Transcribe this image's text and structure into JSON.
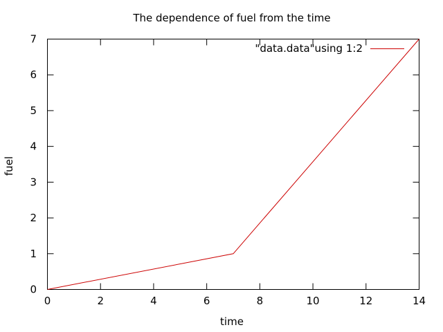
{
  "chart_data": {
    "type": "line",
    "title": "The dependence of fuel from the time",
    "xlabel": "time",
    "ylabel": "fuel",
    "xlim": [
      0,
      14
    ],
    "ylim": [
      0,
      7
    ],
    "xticks": [
      0,
      2,
      4,
      6,
      8,
      10,
      12,
      14
    ],
    "yticks": [
      0,
      1,
      2,
      3,
      4,
      5,
      6,
      7
    ],
    "grid": false,
    "legend_position": "top-right",
    "series": [
      {
        "name": "\"data.data\"using 1:2",
        "color": "#cc0000",
        "x": [
          0,
          7,
          14
        ],
        "y": [
          0,
          1,
          7
        ]
      }
    ]
  }
}
